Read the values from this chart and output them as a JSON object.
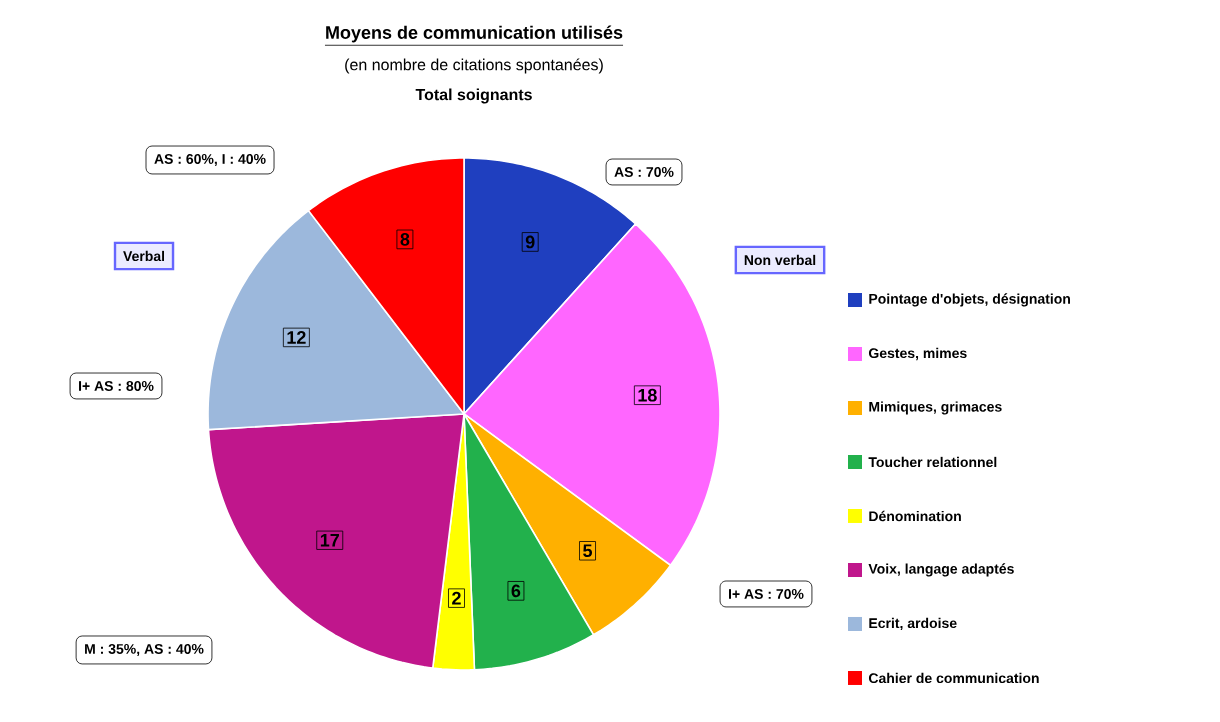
{
  "chart_data": {
    "type": "pie",
    "title": "Moyens de communication utilisés",
    "subtitle": "(en nombre de citations spontanées)",
    "legend_title": "Total soignants",
    "categories": [
      "Pointage d'objets, désignation",
      "Gestes, mimes",
      "Mimiques, grimaces",
      "Toucher relationnel",
      "Dénomination",
      "Voix, langage adaptés",
      "Ecrit, ardoise",
      "Cahier de communication"
    ],
    "values": [
      9,
      18,
      5,
      6,
      2,
      17,
      12,
      8
    ],
    "colors": [
      "#1f3fbf",
      "#ff66ff",
      "#ffb000",
      "#22b14c",
      "#ffff00",
      "#c0168c",
      "#9cb8dc",
      "#ff0000"
    ],
    "data_labels": true,
    "legend": "right",
    "annotations": [
      "AS : 70%",
      "I+ AS : 70%",
      "M : 35%, AS : 40%",
      "I+ AS : 80%",
      "AS : 60%, I : 40%",
      "Verbal",
      "Non verbal"
    ]
  }
}
